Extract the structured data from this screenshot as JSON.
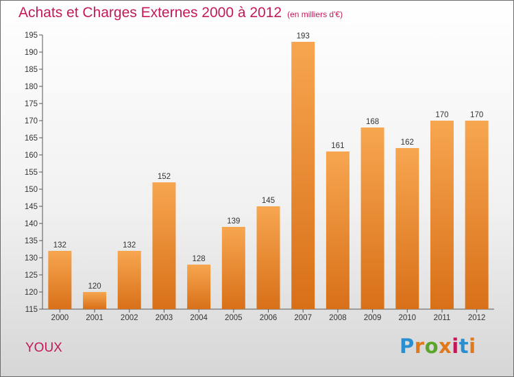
{
  "title": "Achats et Charges Externes 2000 à 2012",
  "subtitle": "(en milliers d'€)",
  "commune": "YOUX",
  "logo": "Proxiti",
  "colors": {
    "title": "#c4185a",
    "bar_top": "#f7a650",
    "bar_bottom": "#d87018",
    "logo": [
      "#2a8fd0",
      "#e0791b",
      "#5ba52b",
      "#e0791b",
      "#c4185a",
      "#2a8fd0",
      "#e0791b"
    ]
  },
  "chart_data": {
    "type": "bar",
    "title": "Achats et Charges Externes 2000 à 2012",
    "subtitle": "(en milliers d'€)",
    "categories": [
      "2000",
      "2001",
      "2002",
      "2003",
      "2004",
      "2005",
      "2006",
      "2007",
      "2008",
      "2009",
      "2010",
      "2011",
      "2012"
    ],
    "values": [
      132,
      120,
      132,
      152,
      128,
      139,
      145,
      193,
      161,
      168,
      162,
      170,
      170
    ],
    "ylim": [
      115,
      195
    ],
    "yticks": [
      115,
      120,
      125,
      130,
      135,
      140,
      145,
      150,
      155,
      160,
      165,
      170,
      175,
      180,
      185,
      190,
      195
    ],
    "grid": false,
    "data_labels": true
  }
}
